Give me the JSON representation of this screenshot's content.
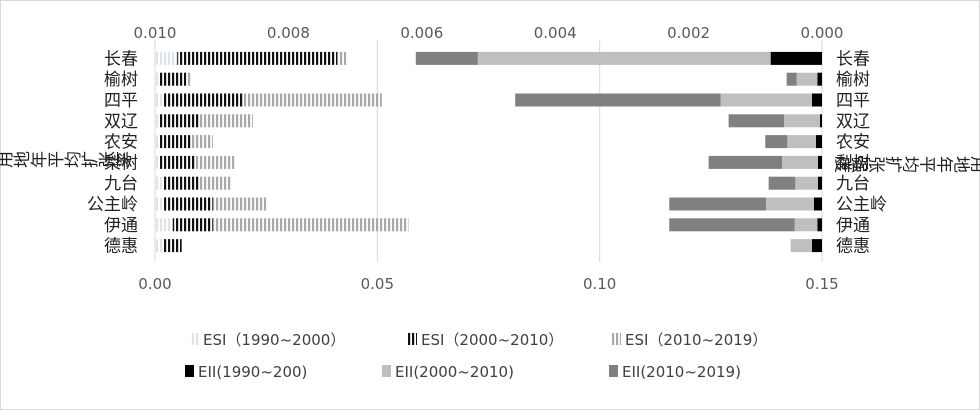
{
  "chart_data": {
    "type": "bar",
    "orientation": "horizontal",
    "stacked": true,
    "categories": [
      "长春",
      "榆树",
      "四平",
      "双辽",
      "农安",
      "梨树",
      "九台",
      "公主岭",
      "伊通",
      "德惠"
    ],
    "ylabel_left": "建设用地年平均扩张率",
    "ylabel_right": "建设用地年平均扩张强度",
    "bottom_axis": {
      "ticks": [
        "0.00",
        "0.05",
        "0.10",
        "0.15"
      ],
      "range": [
        0,
        0.15
      ],
      "applies_to": "ESI"
    },
    "top_axis": {
      "ticks": [
        "0.010",
        "0.008",
        "0.006",
        "0.004",
        "0.002",
        "0.000"
      ],
      "range": [
        0.01,
        0
      ],
      "reversed": true,
      "applies_to": "EII"
    },
    "grid": true,
    "legend_position": "bottom",
    "series": [
      {
        "name": "ESI（1990~2000）",
        "group": "ESI",
        "color": "#dde3ec",
        "values": [
          0.005,
          0.001,
          0.002,
          0.001,
          0.001,
          0.001,
          0.002,
          0.002,
          0.004,
          0.002
        ]
      },
      {
        "name": "ESI（2000~2010）",
        "group": "ESI",
        "color": "#111111",
        "values": [
          0.036,
          0.006,
          0.018,
          0.009,
          0.007,
          0.008,
          0.008,
          0.011,
          0.009,
          0.004
        ]
      },
      {
        "name": "ESI（2010~2019）",
        "group": "ESI",
        "color": "#a8a8a8",
        "values": [
          0.002,
          0.001,
          0.031,
          0.012,
          0.005,
          0.009,
          0.007,
          0.012,
          0.044,
          0.0
        ]
      },
      {
        "name": "EII(1990~200)",
        "group": "EII",
        "color": "#000000",
        "values": [
          0.00077,
          7e-05,
          0.00015,
          3e-05,
          9e-05,
          6e-05,
          6e-05,
          0.00012,
          7e-05,
          0.00015
        ]
      },
      {
        "name": "EII(2000~2010)",
        "group": "EII",
        "color": "#bfbfbf",
        "values": [
          0.00439,
          0.00031,
          0.00137,
          0.00054,
          0.00043,
          0.00054,
          0.00034,
          0.00072,
          0.00034,
          0.00032
        ]
      },
      {
        "name": "EII(2010~2019)",
        "group": "EII",
        "color": "#808080",
        "values": [
          0.00093,
          0.00015,
          0.00308,
          0.00083,
          0.00033,
          0.0011,
          0.0004,
          0.00145,
          0.00188,
          0.0
        ]
      }
    ]
  }
}
